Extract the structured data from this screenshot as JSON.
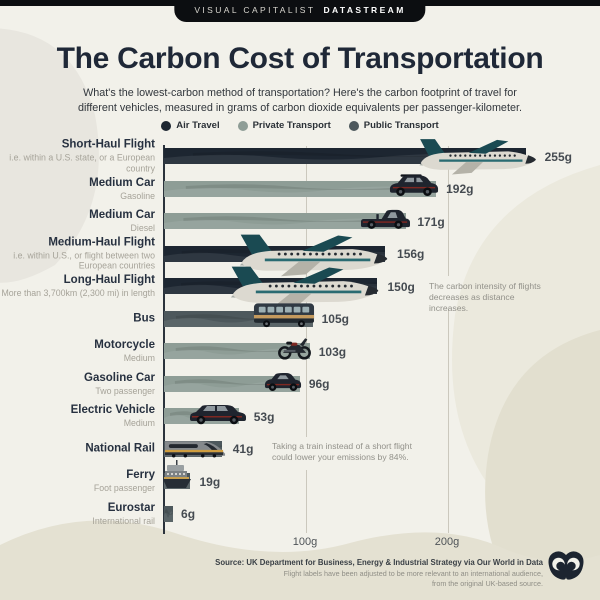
{
  "badge": {
    "brand": "VISUAL CAPITALIST",
    "series": "DATASTREAM"
  },
  "header": {
    "title": "The Carbon Cost of Transportation",
    "subtitle_line1": "What's the lowest-carbon method of transportation? Here's the carbon footprint of travel for",
    "subtitle_line2": "different vehicles, measured in grams of carbon dioxide equivalents per passenger-kilometer."
  },
  "legend": {
    "items": [
      {
        "label": "Air Travel",
        "key": "air",
        "color": "#1d2631"
      },
      {
        "label": "Private Transport",
        "key": "private",
        "color": "#8e9d96"
      },
      {
        "label": "Public Transport",
        "key": "public",
        "color": "#4d585c"
      }
    ]
  },
  "chart_data": {
    "type": "bar",
    "orientation": "horizontal",
    "title": "The Carbon Cost of Transportation",
    "unit": "grams of CO2 equivalents per passenger-kilometer",
    "xlim": [
      0,
      270
    ],
    "grid": true,
    "x_ticks": [
      {
        "value": 100,
        "label": "100g"
      },
      {
        "value": 200,
        "label": "200g"
      }
    ],
    "rows": [
      {
        "label": "Short-Haul Flight",
        "sublabel": "i.e. within a U.S. state, or a European country",
        "value": 255,
        "value_label": "255g",
        "category": "air",
        "icon": "airliner-icon"
      },
      {
        "label": "Medium Car",
        "sublabel": "Gasoline",
        "value": 192,
        "value_label": "192g",
        "category": "private",
        "icon": "suv-icon"
      },
      {
        "label": "Medium Car",
        "sublabel": "Diesel",
        "value": 171,
        "value_label": "171g",
        "category": "private",
        "icon": "pickup-truck-icon"
      },
      {
        "label": "Medium-Haul Flight",
        "sublabel": "i.e. within U.S., or flight between two European countries",
        "value": 156,
        "value_label": "156g",
        "category": "air",
        "icon": "airliner-icon"
      },
      {
        "label": "Long-Haul Flight",
        "sublabel": "More than 3,700km (2,300 mi) in length",
        "value": 150,
        "value_label": "150g",
        "category": "air",
        "icon": "airliner-icon"
      },
      {
        "label": "Bus",
        "sublabel": "",
        "value": 105,
        "value_label": "105g",
        "category": "public",
        "icon": "bus-icon"
      },
      {
        "label": "Motorcycle",
        "sublabel": "Medium",
        "value": 103,
        "value_label": "103g",
        "category": "private",
        "icon": "motorcycle-icon"
      },
      {
        "label": "Gasoline Car",
        "sublabel": "Two passenger",
        "value": 96,
        "value_label": "96g",
        "category": "private",
        "icon": "compact-car-icon"
      },
      {
        "label": "Electric Vehicle",
        "sublabel": "Medium",
        "value": 53,
        "value_label": "53g",
        "category": "private",
        "icon": "station-wagon-icon"
      },
      {
        "label": "National Rail",
        "sublabel": "",
        "value": 41,
        "value_label": "41g",
        "category": "public",
        "icon": "high-speed-train-icon"
      },
      {
        "label": "Ferry",
        "sublabel": "Foot passenger",
        "value": 19,
        "value_label": "19g",
        "category": "public",
        "icon": "ferry-icon"
      },
      {
        "label": "Eurostar",
        "sublabel": "International rail",
        "value": 6,
        "value_label": "6g",
        "category": "public",
        "icon": ""
      }
    ],
    "annotations": [
      "The carbon intensity of flights decreases as distance increases.",
      "Taking a train instead of a short flight could lower your emissions by 84%."
    ]
  },
  "footer": {
    "source_bold": "Source: UK Department for Business, Energy & Industrial Strategy via Our World in Data",
    "source_note": "Flight labels have been adjusted to be more relevant to an international audience, from the original UK-based source."
  },
  "colors": {
    "background": "#f2f1ea",
    "air": "#1d2631",
    "private": "#8e9d96",
    "public": "#4d585c",
    "title_text": "#1f2837",
    "accent_teal": "#1a4a52",
    "accent_gold": "#c49a5e"
  }
}
